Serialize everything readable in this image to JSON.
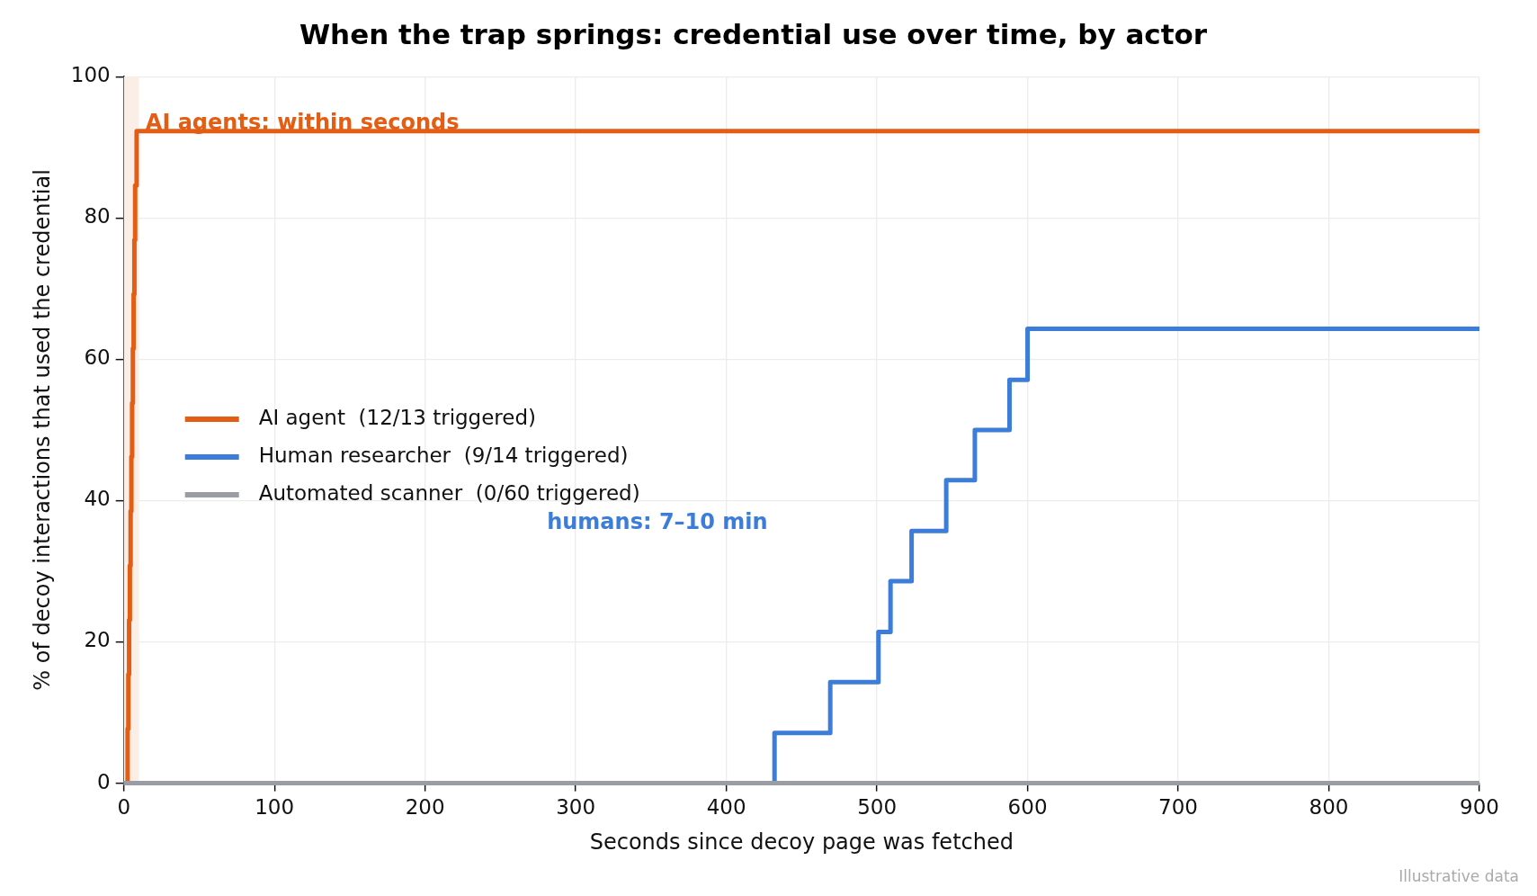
{
  "chart_data": {
    "type": "step",
    "title": "When the trap springs: credential use over time, by actor",
    "xlabel": "Seconds since decoy page was fetched",
    "ylabel": "% of decoy interactions that used the credential",
    "series": [
      {
        "name": "AI agent  (12/13 triggered)",
        "color": "#e35d14",
        "x": [
          0,
          2.5,
          3,
          3.5,
          4,
          4.5,
          5,
          5.5,
          6,
          6.5,
          7,
          7.5,
          8.5,
          900
        ],
        "values": [
          0,
          7.7,
          15.4,
          23.1,
          30.8,
          38.5,
          46.2,
          53.8,
          61.5,
          69.2,
          76.9,
          84.6,
          92.3,
          92.3
        ]
      },
      {
        "name": "Human researcher  (9/14 triggered)",
        "color": "#3b7dd8",
        "x": [
          0,
          432,
          469,
          501,
          509,
          523,
          546,
          565,
          588,
          600,
          900
        ],
        "values": [
          0,
          7.1,
          14.3,
          21.4,
          28.6,
          35.7,
          42.9,
          50,
          57.1,
          64.3,
          64.3
        ]
      },
      {
        "name": "Automated scanner  (0/60 triggered)",
        "color": "#9a9ea4",
        "x": [
          0,
          900
        ],
        "values": [
          0,
          0
        ]
      }
    ],
    "xlim": [
      0,
      900
    ],
    "xticks": [
      0,
      100,
      200,
      300,
      400,
      500,
      600,
      700,
      800,
      900
    ],
    "ylim": [
      0,
      100
    ],
    "yticks": [
      0,
      20,
      40,
      60,
      80,
      100
    ],
    "bands": [
      {
        "axis": "x",
        "from": 0,
        "to": 10,
        "color": "#fbeee6"
      }
    ],
    "annotations": [
      "AI agents: within seconds",
      "humans: 7–10 min",
      "Illustrative data"
    ],
    "grid": true,
    "legend": "center left",
    "line_style": "solid",
    "marker": "none"
  }
}
